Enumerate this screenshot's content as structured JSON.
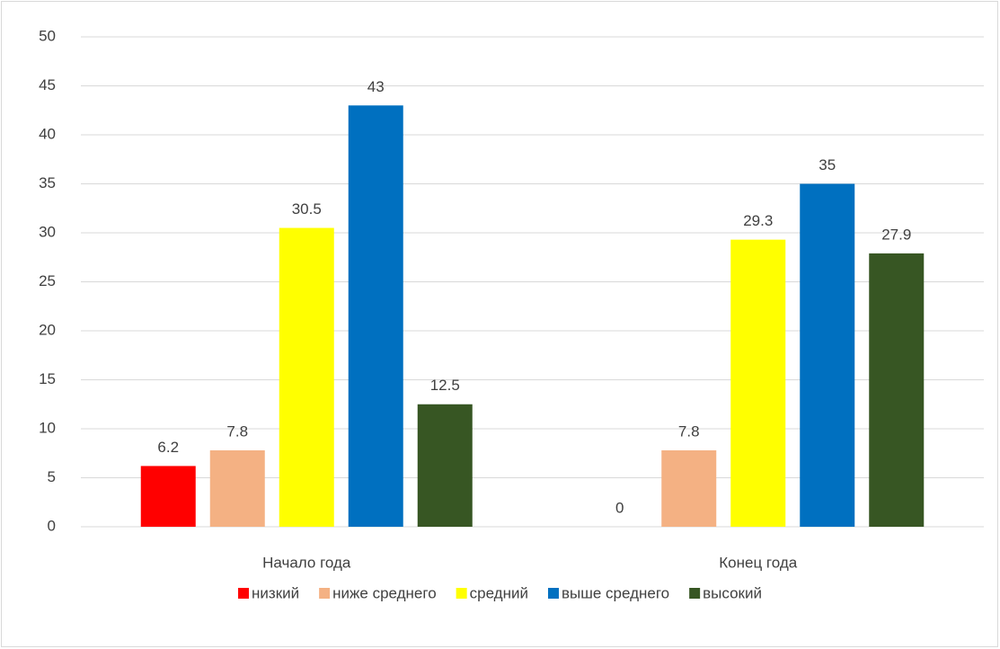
{
  "chart_data": {
    "type": "bar",
    "categories": [
      "Начало года",
      "Конец года"
    ],
    "series": [
      {
        "name": "низкий",
        "color": "#ff0000",
        "values": [
          6.2,
          0
        ]
      },
      {
        "name": "ниже среднего",
        "color": "#f4b183",
        "values": [
          7.8,
          7.8
        ]
      },
      {
        "name": "средний",
        "color": "#ffff00",
        "values": [
          30.5,
          29.3
        ]
      },
      {
        "name": "выше среднего",
        "color": "#0070c0",
        "values": [
          43,
          35
        ]
      },
      {
        "name": "высокий",
        "color": "#375623",
        "values": [
          12.5,
          27.9
        ]
      }
    ],
    "ylim": [
      0,
      50
    ],
    "yticks": [
      0,
      5,
      10,
      15,
      20,
      25,
      30,
      35,
      40,
      45,
      50
    ],
    "grid": true,
    "legend": "bottom"
  }
}
